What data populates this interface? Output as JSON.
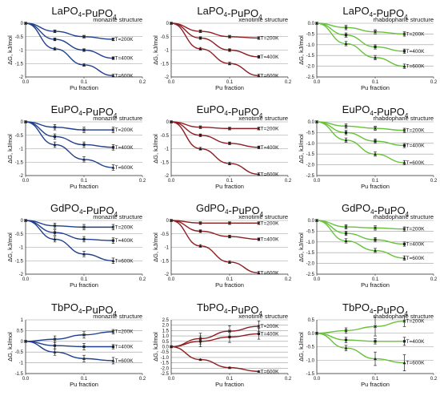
{
  "chart_data": [
    {
      "type": "line",
      "title": "LaPO4-PuPO4",
      "structure": "monazite structure",
      "xlabel": "Pu fraction",
      "ylabel": "ΔG, kJ/mol",
      "xlim": [
        0,
        0.2
      ],
      "ylim": [
        -2,
        0
      ],
      "xticks": [
        "0.0",
        "0.1",
        "0.2"
      ],
      "yticks": [
        "0",
        "-0.5",
        "-1",
        "-1.5",
        "-2"
      ],
      "color": "#1f3f8f",
      "series": [
        {
          "name": "T=200K",
          "x": [
            0,
            0.05,
            0.1,
            0.15
          ],
          "y": [
            0,
            -0.3,
            -0.5,
            -0.6
          ],
          "err": [
            0,
            0.05,
            0.05,
            0.05
          ]
        },
        {
          "name": "T=400K",
          "x": [
            0,
            0.05,
            0.1,
            0.15
          ],
          "y": [
            0,
            -0.6,
            -1.0,
            -1.3
          ],
          "err": [
            0,
            0.05,
            0.05,
            0.05
          ]
        },
        {
          "name": "T=600K",
          "x": [
            0,
            0.05,
            0.1,
            0.15
          ],
          "y": [
            0,
            -0.95,
            -1.55,
            -1.95
          ],
          "err": [
            0,
            0.05,
            0.05,
            0.05
          ]
        }
      ]
    },
    {
      "type": "line",
      "title": "LaPO4-PuPO4",
      "structure": "xenotime structure",
      "xlabel": "Pu fraction",
      "ylabel": "ΔG, kJ/mol",
      "xlim": [
        0,
        0.2
      ],
      "ylim": [
        -2,
        0
      ],
      "xticks": [
        "0.0",
        "0.1",
        "0.2"
      ],
      "yticks": [
        "0",
        "-0.5",
        "-1",
        "-1.5",
        "-2"
      ],
      "color": "#8f1e22",
      "series": [
        {
          "name": "T=200K",
          "x": [
            0,
            0.05,
            0.1,
            0.15
          ],
          "y": [
            0,
            -0.3,
            -0.5,
            -0.55
          ],
          "err": [
            0,
            0.05,
            0.05,
            0.05
          ]
        },
        {
          "name": "T=400K",
          "x": [
            0,
            0.05,
            0.1,
            0.15
          ],
          "y": [
            0,
            -0.55,
            -1.0,
            -1.25
          ],
          "err": [
            0,
            0.05,
            0.05,
            0.05
          ]
        },
        {
          "name": "T=600K",
          "x": [
            0,
            0.05,
            0.1,
            0.15
          ],
          "y": [
            0,
            -0.95,
            -1.5,
            -1.95
          ],
          "err": [
            0,
            0.05,
            0.05,
            0.05
          ]
        }
      ]
    },
    {
      "type": "line",
      "title": "LaPO4-PuPO4",
      "structure": "rhabdophane structure",
      "xlabel": "Pu fraction",
      "ylabel": "ΔG, kJ/mol",
      "xlim": [
        0,
        0.2
      ],
      "ylim": [
        -2.5,
        0
      ],
      "xticks": [
        "0.0",
        "0.1",
        "0.2"
      ],
      "yticks": [
        "0.0",
        "-0.5",
        "-1.0",
        "-1.5",
        "-2.0",
        "-2.5"
      ],
      "color": "#66c23a",
      "series": [
        {
          "name": "T=200K",
          "x": [
            0,
            0.05,
            0.1,
            0.15
          ],
          "y": [
            0,
            -0.2,
            -0.4,
            -0.5
          ],
          "err": [
            0,
            0.1,
            0.1,
            0.1
          ]
        },
        {
          "name": "T=400K",
          "x": [
            0,
            0.05,
            0.1,
            0.15
          ],
          "y": [
            0,
            -0.55,
            -1.1,
            -1.3
          ],
          "err": [
            0,
            0.1,
            0.1,
            0.1
          ]
        },
        {
          "name": "T=600K",
          "x": [
            0,
            0.05,
            0.1,
            0.15
          ],
          "y": [
            0,
            -0.95,
            -1.6,
            -2.0
          ],
          "err": [
            0,
            0.1,
            0.1,
            0.1
          ]
        }
      ]
    },
    {
      "type": "line",
      "title": "EuPO4-PuPO4",
      "structure": "monazite structure",
      "xlabel": "Pu fraction",
      "ylabel": "ΔG, kJ/mol",
      "xlim": [
        0,
        0.2
      ],
      "ylim": [
        -2,
        0
      ],
      "xticks": [
        "0.0",
        "0.1",
        "0.2"
      ],
      "yticks": [
        "0",
        "-0.5",
        "-1",
        "-1.5",
        "-2"
      ],
      "color": "#1f3f8f",
      "series": [
        {
          "name": "T=200K",
          "x": [
            0,
            0.05,
            0.1,
            0.15
          ],
          "y": [
            0,
            -0.2,
            -0.3,
            -0.3
          ],
          "err": [
            0,
            0.1,
            0.1,
            0.1
          ]
        },
        {
          "name": "T=400K",
          "x": [
            0,
            0.05,
            0.1,
            0.15
          ],
          "y": [
            0,
            -0.55,
            -0.85,
            -0.95
          ],
          "err": [
            0,
            0.1,
            0.1,
            0.1
          ]
        },
        {
          "name": "T=600K",
          "x": [
            0,
            0.05,
            0.1,
            0.15
          ],
          "y": [
            0,
            -0.85,
            -1.4,
            -1.7
          ],
          "err": [
            0,
            0.1,
            0.1,
            0.1
          ]
        }
      ]
    },
    {
      "type": "line",
      "title": "EuPO4-PuPO4",
      "structure": "xenotime structure",
      "xlabel": "Pu fraction",
      "ylabel": "ΔG, kJ/mol",
      "xlim": [
        0,
        0.2
      ],
      "ylim": [
        -2,
        0
      ],
      "xticks": [
        "0.0",
        "0.1",
        "0.2"
      ],
      "yticks": [
        "0",
        "-0.5",
        "-1",
        "-1.5",
        "-2"
      ],
      "color": "#8f1e22",
      "series": [
        {
          "name": "T=200K",
          "x": [
            0,
            0.05,
            0.1,
            0.15
          ],
          "y": [
            0,
            -0.2,
            -0.25,
            -0.25
          ],
          "err": [
            0,
            0.05,
            0.05,
            0.05
          ]
        },
        {
          "name": "T=400K",
          "x": [
            0,
            0.05,
            0.1,
            0.15
          ],
          "y": [
            0,
            -0.5,
            -0.8,
            -0.95
          ],
          "err": [
            0,
            0.05,
            0.05,
            0.05
          ]
        },
        {
          "name": "T=600K",
          "x": [
            0,
            0.05,
            0.1,
            0.15
          ],
          "y": [
            0,
            -1.0,
            -1.55,
            -1.95
          ],
          "err": [
            0,
            0.05,
            0.05,
            0.05
          ]
        }
      ]
    },
    {
      "type": "line",
      "title": "EuPO4-PuPO4",
      "structure": "rhabdophane structure",
      "xlabel": "Pu fraction",
      "ylabel": "ΔG, kJ/mol",
      "xlim": [
        0,
        0.2
      ],
      "ylim": [
        -2.5,
        0
      ],
      "xticks": [
        "0.0",
        "0.1",
        "0.2"
      ],
      "yticks": [
        "0.0",
        "-0.5",
        "-1.0",
        "-1.5",
        "-2.0",
        "-2.5"
      ],
      "color": "#66c23a",
      "series": [
        {
          "name": "T=200K",
          "x": [
            0,
            0.05,
            0.1,
            0.15
          ],
          "y": [
            0,
            -0.2,
            -0.3,
            -0.4
          ],
          "err": [
            0,
            0.1,
            0.1,
            0.1
          ]
        },
        {
          "name": "T=400K",
          "x": [
            0,
            0.05,
            0.1,
            0.15
          ],
          "y": [
            0,
            -0.5,
            -0.9,
            -1.1
          ],
          "err": [
            0,
            0.1,
            0.1,
            0.1
          ]
        },
        {
          "name": "T=600K",
          "x": [
            0,
            0.05,
            0.1,
            0.15
          ],
          "y": [
            0,
            -0.85,
            -1.5,
            -1.9
          ],
          "err": [
            0,
            0.1,
            0.1,
            0.1
          ]
        }
      ]
    },
    {
      "type": "line",
      "title": "GdPO4-PuPO4",
      "structure": "monazite structure",
      "xlabel": "Pu fraction",
      "ylabel": "ΔG, kJ/mol",
      "xlim": [
        0,
        0.2
      ],
      "ylim": [
        -2,
        0
      ],
      "xticks": [
        "0.0",
        "0.1",
        "0.2"
      ],
      "yticks": [
        "0",
        "-0.5",
        "-1",
        "-1.5",
        "-2"
      ],
      "color": "#1f3f8f",
      "series": [
        {
          "name": "T=200K",
          "x": [
            0,
            0.05,
            0.1,
            0.15
          ],
          "y": [
            0,
            -0.2,
            -0.25,
            -0.25
          ],
          "err": [
            0,
            0.1,
            0.1,
            0.1
          ]
        },
        {
          "name": "T=400K",
          "x": [
            0,
            0.05,
            0.1,
            0.15
          ],
          "y": [
            0,
            -0.45,
            -0.7,
            -0.75
          ],
          "err": [
            0,
            0.1,
            0.1,
            0.1
          ]
        },
        {
          "name": "T=600K",
          "x": [
            0,
            0.05,
            0.1,
            0.15
          ],
          "y": [
            0,
            -0.7,
            -1.25,
            -1.5
          ],
          "err": [
            0,
            0.1,
            0.1,
            0.1
          ]
        }
      ]
    },
    {
      "type": "line",
      "title": "GdPO4-PuPO4",
      "structure": "xenotime structure",
      "xlabel": "Pu fraction",
      "ylabel": "ΔG, kJ/mol",
      "xlim": [
        0,
        0.2
      ],
      "ylim": [
        -2,
        0
      ],
      "xticks": [
        "0.0",
        "0.1",
        "0.2"
      ],
      "yticks": [
        "0",
        "-0.5",
        "-1",
        "-1.5",
        "-2"
      ],
      "color": "#8f1e22",
      "series": [
        {
          "name": "T=200K",
          "x": [
            0,
            0.05,
            0.1,
            0.15
          ],
          "y": [
            0,
            -0.1,
            -0.1,
            -0.1
          ],
          "err": [
            0,
            0.05,
            0.05,
            0.05
          ]
        },
        {
          "name": "T=400K",
          "x": [
            0,
            0.05,
            0.1,
            0.15
          ],
          "y": [
            0,
            -0.4,
            -0.6,
            -0.7
          ],
          "err": [
            0,
            0.05,
            0.05,
            0.05
          ]
        },
        {
          "name": "T=600K",
          "x": [
            0,
            0.05,
            0.1,
            0.15
          ],
          "y": [
            0,
            -0.95,
            -1.55,
            -1.95
          ],
          "err": [
            0,
            0.05,
            0.05,
            0.05
          ]
        }
      ]
    },
    {
      "type": "line",
      "title": "GdPO4-PuPO4",
      "structure": "rhabdophane structure",
      "xlabel": "Pu fraction",
      "ylabel": "ΔG, kJ/mol",
      "xlim": [
        0,
        0.2
      ],
      "ylim": [
        -2.5,
        0
      ],
      "xticks": [
        "0.0",
        "0.1",
        "0.2"
      ],
      "yticks": [
        "0.0",
        "-0.5",
        "-1.0",
        "-1.5",
        "-2.0",
        "-2.5"
      ],
      "color": "#66c23a",
      "series": [
        {
          "name": "T=200K",
          "x": [
            0,
            0.05,
            0.1,
            0.15
          ],
          "y": [
            0,
            -0.3,
            -0.35,
            -0.4
          ],
          "err": [
            0,
            0.1,
            0.1,
            0.1
          ]
        },
        {
          "name": "T=400K",
          "x": [
            0,
            0.05,
            0.1,
            0.15
          ],
          "y": [
            0,
            -0.6,
            -0.9,
            -1.1
          ],
          "err": [
            0,
            0.1,
            0.1,
            0.1
          ]
        },
        {
          "name": "T=600K",
          "x": [
            0,
            0.05,
            0.1,
            0.15
          ],
          "y": [
            0,
            -0.95,
            -1.4,
            -1.75
          ],
          "err": [
            0,
            0.1,
            0.1,
            0.1
          ]
        }
      ]
    },
    {
      "type": "line",
      "title": "TbPO4-PuPO4",
      "structure": "monazite structure",
      "xlabel": "Pu fraction",
      "ylabel": "ΔG, kJ/mol",
      "xlim": [
        0,
        0.2
      ],
      "ylim": [
        -1.5,
        1
      ],
      "xticks": [
        "0.0",
        "0.1",
        "0.2"
      ],
      "yticks": [
        "1",
        "0.5",
        "0",
        "-0.5",
        "-1",
        "-1.5"
      ],
      "color": "#1f3f8f",
      "series": [
        {
          "name": "T=200K",
          "x": [
            0,
            0.05,
            0.1,
            0.15
          ],
          "y": [
            0,
            0.1,
            0.3,
            0.45
          ],
          "err": [
            0,
            0.15,
            0.15,
            0.1
          ]
        },
        {
          "name": "T=400K",
          "x": [
            0,
            0.05,
            0.1,
            0.15
          ],
          "y": [
            0,
            -0.2,
            -0.25,
            -0.25
          ],
          "err": [
            0,
            0.15,
            0.15,
            0.1
          ]
        },
        {
          "name": "T=600K",
          "x": [
            0,
            0.05,
            0.1,
            0.15
          ],
          "y": [
            0,
            -0.5,
            -0.8,
            -0.9
          ],
          "err": [
            0,
            0.15,
            0.15,
            0.15
          ]
        }
      ]
    },
    {
      "type": "line",
      "title": "TbPO4-PuPO4",
      "structure": "xenotime structure",
      "xlabel": "Pu fraction",
      "ylabel": "ΔG, kJ/mol",
      "xlim": [
        0,
        0.2
      ],
      "ylim": [
        -2.5,
        2.5
      ],
      "xticks": [
        "0.0",
        "0.1",
        "0.2"
      ],
      "yticks": [
        "2.5",
        "2.0",
        "1.5",
        "1.0",
        "0.5",
        "0.0",
        "-0.5",
        "-1.0",
        "-1.5",
        "-2.0",
        "-2.5"
      ],
      "color": "#8f1e22",
      "series": [
        {
          "name": "T=200K",
          "x": [
            0,
            0.05,
            0.1,
            0.15
          ],
          "y": [
            0,
            0.75,
            1.45,
            1.9
          ],
          "err": [
            0,
            0.5,
            0.5,
            0.5
          ]
        },
        {
          "name": "T=400K",
          "x": [
            0,
            0.05,
            0.1,
            0.15
          ],
          "y": [
            0,
            0.5,
            0.9,
            1.2
          ],
          "err": [
            0,
            0.5,
            0.5,
            0.5
          ]
        },
        {
          "name": "T=600K",
          "x": [
            0,
            0.05,
            0.1,
            0.15
          ],
          "y": [
            0,
            -1.2,
            -1.95,
            -2.3
          ],
          "err": [
            0,
            0.05,
            0.05,
            0.05
          ]
        }
      ]
    },
    {
      "type": "line",
      "title": "TbPO4-PuPO4",
      "structure": "rhabdophane structure",
      "xlabel": "Pu fraction",
      "ylabel": "ΔG, kJ/mol",
      "xlim": [
        0,
        0.2
      ],
      "ylim": [
        -1.5,
        0.5
      ],
      "xticks": [
        "0.0",
        "0.1",
        "0.2"
      ],
      "yticks": [
        "0.5",
        "0.0",
        "-0.5",
        "-1.0",
        "-1.5"
      ],
      "color": "#66c23a",
      "series": [
        {
          "name": "T=200K",
          "x": [
            0,
            0.05,
            0.1,
            0.15
          ],
          "y": [
            0,
            0.1,
            0.25,
            0.45
          ],
          "err": [
            0,
            0.1,
            0.35,
            0.2
          ]
        },
        {
          "name": "T=400K",
          "x": [
            0,
            0.05,
            0.1,
            0.15
          ],
          "y": [
            0,
            -0.25,
            -0.3,
            -0.3
          ],
          "err": [
            0,
            0.1,
            0.1,
            0.15
          ]
        },
        {
          "name": "T=600K",
          "x": [
            0,
            0.05,
            0.1,
            0.15
          ],
          "y": [
            0,
            -0.55,
            -0.95,
            -1.1
          ],
          "err": [
            0,
            0.1,
            0.25,
            0.3
          ]
        }
      ]
    }
  ]
}
